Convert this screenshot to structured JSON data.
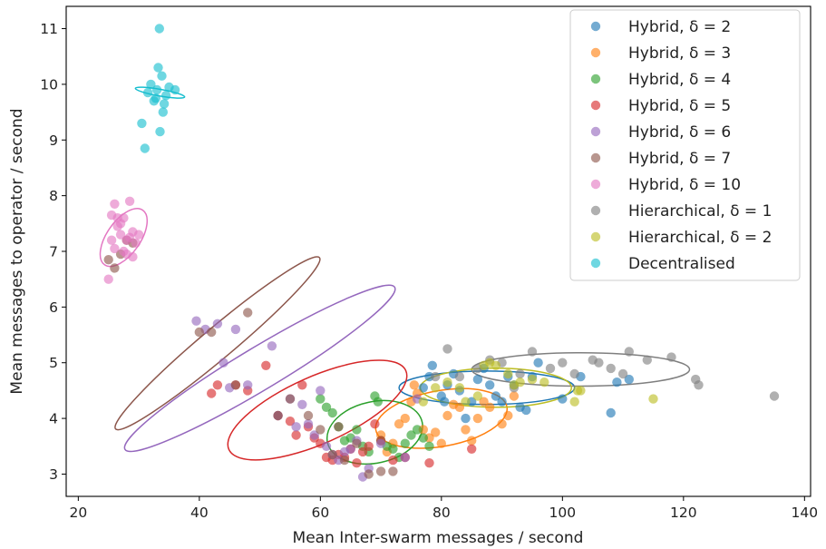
{
  "chart_data": {
    "type": "scatter",
    "title": "",
    "xlabel": "Mean Inter-swarm messages / second",
    "ylabel": "Mean messages to operator / second",
    "xlim": [
      18,
      141
    ],
    "ylim": [
      2.6,
      11.4
    ],
    "xticks": [
      20,
      40,
      60,
      80,
      100,
      120,
      140
    ],
    "yticks": [
      3,
      4,
      5,
      6,
      7,
      8,
      9,
      10,
      11
    ],
    "grid": false,
    "legend_position": "top-right",
    "series": [
      {
        "name": "Hybrid, δ = 2",
        "color": "#1f77b4",
        "points": [
          [
            77,
            4.55
          ],
          [
            78,
            4.75
          ],
          [
            78.5,
            4.95
          ],
          [
            80,
            4.4
          ],
          [
            80.5,
            4.3
          ],
          [
            81,
            4.6
          ],
          [
            82,
            4.8
          ],
          [
            83,
            4.5
          ],
          [
            84,
            4.0
          ],
          [
            85,
            4.3
          ],
          [
            86,
            4.7
          ],
          [
            87,
            4.9
          ],
          [
            88,
            4.6
          ],
          [
            89,
            4.4
          ],
          [
            90,
            4.3
          ],
          [
            91,
            4.75
          ],
          [
            92,
            4.6
          ],
          [
            93,
            4.2
          ],
          [
            94,
            4.15
          ],
          [
            95,
            4.75
          ],
          [
            96,
            5.0
          ],
          [
            100,
            4.35
          ],
          [
            103,
            4.75
          ],
          [
            108,
            4.1
          ],
          [
            109,
            4.65
          ],
          [
            111,
            4.7
          ]
        ],
        "ellipse": {
          "cx": 87.5,
          "cy": 4.55,
          "rx": 14.5,
          "ry": 0.3,
          "angle": 0
        }
      },
      {
        "name": "Hybrid, δ = 3",
        "color": "#ff7f0e",
        "points": [
          [
            70,
            3.7
          ],
          [
            71,
            3.4
          ],
          [
            72,
            3.55
          ],
          [
            73,
            3.9
          ],
          [
            74,
            4.0
          ],
          [
            75,
            4.3
          ],
          [
            75.5,
            4.6
          ],
          [
            76,
            4.45
          ],
          [
            77,
            3.8
          ],
          [
            78,
            3.65
          ],
          [
            79,
            3.75
          ],
          [
            80,
            3.55
          ],
          [
            81,
            4.05
          ],
          [
            82,
            4.25
          ],
          [
            83,
            4.2
          ],
          [
            84,
            3.8
          ],
          [
            85,
            3.6
          ],
          [
            86,
            4.0
          ],
          [
            87,
            4.3
          ],
          [
            88,
            4.2
          ],
          [
            90,
            3.9
          ],
          [
            91,
            4.05
          ],
          [
            92,
            4.4
          ]
        ],
        "ellipse": {
          "cx": 80,
          "cy": 4.0,
          "rx": 11,
          "ry": 0.5,
          "angle": 10
        }
      },
      {
        "name": "Hybrid, δ = 4",
        "color": "#2ca02c",
        "points": [
          [
            60,
            4.35
          ],
          [
            61,
            4.2
          ],
          [
            62,
            4.1
          ],
          [
            63,
            3.85
          ],
          [
            64,
            3.6
          ],
          [
            65,
            3.65
          ],
          [
            66,
            3.8
          ],
          [
            67,
            3.5
          ],
          [
            68,
            3.4
          ],
          [
            69,
            4.4
          ],
          [
            69.5,
            4.3
          ],
          [
            70,
            3.6
          ],
          [
            71,
            3.5
          ],
          [
            72,
            3.45
          ],
          [
            73,
            3.3
          ],
          [
            74,
            3.55
          ],
          [
            75,
            3.7
          ],
          [
            76,
            3.8
          ],
          [
            77,
            3.65
          ],
          [
            78,
            3.5
          ]
        ],
        "ellipse": {
          "cx": 69,
          "cy": 3.75,
          "rx": 8,
          "ry": 0.55,
          "angle": 12
        }
      },
      {
        "name": "Hybrid, δ = 5",
        "color": "#d62728",
        "points": [
          [
            42,
            4.45
          ],
          [
            43,
            4.6
          ],
          [
            46,
            4.6
          ],
          [
            48,
            4.5
          ],
          [
            51,
            4.95
          ],
          [
            53,
            4.05
          ],
          [
            55,
            3.95
          ],
          [
            56,
            3.7
          ],
          [
            57,
            4.6
          ],
          [
            58,
            3.85
          ],
          [
            59,
            3.65
          ],
          [
            60,
            3.55
          ],
          [
            61,
            3.3
          ],
          [
            62,
            3.25
          ],
          [
            63,
            3.35
          ],
          [
            64,
            3.3
          ],
          [
            65,
            3.45
          ],
          [
            66,
            3.2
          ],
          [
            67,
            3.4
          ],
          [
            68,
            3.5
          ],
          [
            69,
            3.9
          ],
          [
            70,
            3.6
          ],
          [
            72,
            3.25
          ],
          [
            74,
            3.3
          ],
          [
            78,
            3.2
          ],
          [
            85,
            3.45
          ]
        ],
        "ellipse": {
          "cx": 59.5,
          "cy": 4.15,
          "rx": 16,
          "ry": 0.6,
          "angle": 24
        }
      },
      {
        "name": "Hybrid, δ = 6",
        "color": "#9467bd",
        "points": [
          [
            39.5,
            5.75
          ],
          [
            41,
            5.6
          ],
          [
            43,
            5.7
          ],
          [
            44,
            5.0
          ],
          [
            45,
            4.55
          ],
          [
            46,
            5.6
          ],
          [
            48,
            4.6
          ],
          [
            52,
            5.3
          ],
          [
            53,
            4.05
          ],
          [
            55,
            4.35
          ],
          [
            56,
            3.85
          ],
          [
            57,
            4.25
          ],
          [
            58,
            3.9
          ],
          [
            59,
            3.7
          ],
          [
            60,
            4.5
          ],
          [
            61,
            3.5
          ],
          [
            62,
            3.35
          ],
          [
            63,
            3.25
          ],
          [
            64,
            3.4
          ],
          [
            65,
            3.45
          ],
          [
            66,
            3.6
          ],
          [
            67,
            2.95
          ],
          [
            68,
            3.1
          ],
          [
            70,
            3.55
          ],
          [
            74,
            3.3
          ],
          [
            76,
            4.35
          ]
        ],
        "ellipse": {
          "cx": 50,
          "cy": 4.9,
          "rx": 26,
          "ry": 0.38,
          "angle": 31
        }
      },
      {
        "name": "Hybrid, δ = 7",
        "color": "#8c564b",
        "points": [
          [
            25,
            6.85
          ],
          [
            26,
            6.7
          ],
          [
            27,
            6.95
          ],
          [
            28,
            7.2
          ],
          [
            29,
            7.15
          ],
          [
            40,
            5.55
          ],
          [
            42,
            5.55
          ],
          [
            46,
            4.6
          ],
          [
            48,
            5.9
          ],
          [
            53,
            4.05
          ],
          [
            55,
            4.35
          ],
          [
            58,
            4.05
          ],
          [
            60,
            3.8
          ],
          [
            62,
            3.35
          ],
          [
            63,
            3.85
          ],
          [
            64,
            3.25
          ],
          [
            66,
            3.55
          ],
          [
            68,
            3.0
          ],
          [
            70,
            3.05
          ],
          [
            72,
            3.05
          ]
        ],
        "ellipse": {
          "cx": 43,
          "cy": 5.35,
          "rx": 22,
          "ry": 0.28,
          "angle": 40
        }
      },
      {
        "name": "Hybrid, δ = 10",
        "color": "#e377c2",
        "points": [
          [
            25,
            6.5
          ],
          [
            25.5,
            7.2
          ],
          [
            26,
            7.85
          ],
          [
            26.5,
            7.6
          ],
          [
            27,
            7.3
          ],
          [
            27.5,
            7.0
          ],
          [
            28,
            6.95
          ],
          [
            28.5,
            7.9
          ],
          [
            29,
            7.35
          ],
          [
            29.5,
            7.15
          ],
          [
            30,
            7.3
          ],
          [
            25.5,
            7.65
          ],
          [
            27,
            7.5
          ],
          [
            26,
            7.05
          ],
          [
            28,
            7.2
          ],
          [
            27.5,
            7.6
          ],
          [
            29,
            6.9
          ],
          [
            26.5,
            7.45
          ],
          [
            28.5,
            7.25
          ]
        ],
        "ellipse": {
          "cx": 27.5,
          "cy": 7.25,
          "rx": 5.5,
          "ry": 0.3,
          "angle": 55
        }
      },
      {
        "name": "Hierarchical, δ = 1",
        "color": "#7f7f7f",
        "points": [
          [
            79,
            4.75
          ],
          [
            81,
            5.25
          ],
          [
            83,
            4.75
          ],
          [
            86,
            4.9
          ],
          [
            88,
            5.05
          ],
          [
            90,
            5.0
          ],
          [
            92,
            4.55
          ],
          [
            93,
            4.8
          ],
          [
            95,
            5.2
          ],
          [
            98,
            4.9
          ],
          [
            100,
            5.0
          ],
          [
            102,
            4.8
          ],
          [
            105,
            5.05
          ],
          [
            106,
            5.0
          ],
          [
            108,
            4.9
          ],
          [
            110,
            4.8
          ],
          [
            111,
            5.2
          ],
          [
            114,
            5.05
          ],
          [
            118,
            5.1
          ],
          [
            122,
            4.7
          ],
          [
            122.5,
            4.6
          ],
          [
            135,
            4.4
          ]
        ],
        "ellipse": {
          "cx": 103,
          "cy": 4.88,
          "rx": 18,
          "ry": 0.3,
          "angle": 0
        }
      },
      {
        "name": "Hierarchical, δ = 2",
        "color": "#bcbd22",
        "points": [
          [
            77,
            4.3
          ],
          [
            79,
            4.55
          ],
          [
            81,
            4.65
          ],
          [
            83,
            4.55
          ],
          [
            84,
            4.3
          ],
          [
            86,
            4.4
          ],
          [
            87,
            4.95
          ],
          [
            88,
            5.0
          ],
          [
            89,
            4.95
          ],
          [
            91,
            4.8
          ],
          [
            92,
            4.6
          ],
          [
            93,
            4.65
          ],
          [
            95,
            4.7
          ],
          [
            97,
            4.65
          ],
          [
            102,
            4.3
          ],
          [
            102.5,
            4.5
          ],
          [
            103,
            4.5
          ],
          [
            115,
            4.35
          ]
        ],
        "ellipse": {
          "cx": 89,
          "cy": 4.55,
          "rx": 12.5,
          "ry": 0.35,
          "angle": 0
        }
      },
      {
        "name": "Decentralised",
        "color": "#17becf",
        "points": [
          [
            31,
            8.85
          ],
          [
            31.5,
            9.85
          ],
          [
            32,
            10.0
          ],
          [
            32.5,
            9.7
          ],
          [
            33,
            9.9
          ],
          [
            33.2,
            10.3
          ],
          [
            33.4,
            11.0
          ],
          [
            33.5,
            9.15
          ],
          [
            34,
            9.5
          ],
          [
            34.5,
            9.8
          ],
          [
            35,
            9.95
          ],
          [
            36,
            9.9
          ],
          [
            30.5,
            9.3
          ],
          [
            32.8,
            9.75
          ],
          [
            33.8,
            10.15
          ],
          [
            34.2,
            9.65
          ]
        ],
        "ellipse": {
          "cx": 33.5,
          "cy": 9.85,
          "rx": 0.55,
          "ry": 0.45,
          "angle": 80
        }
      }
    ]
  }
}
